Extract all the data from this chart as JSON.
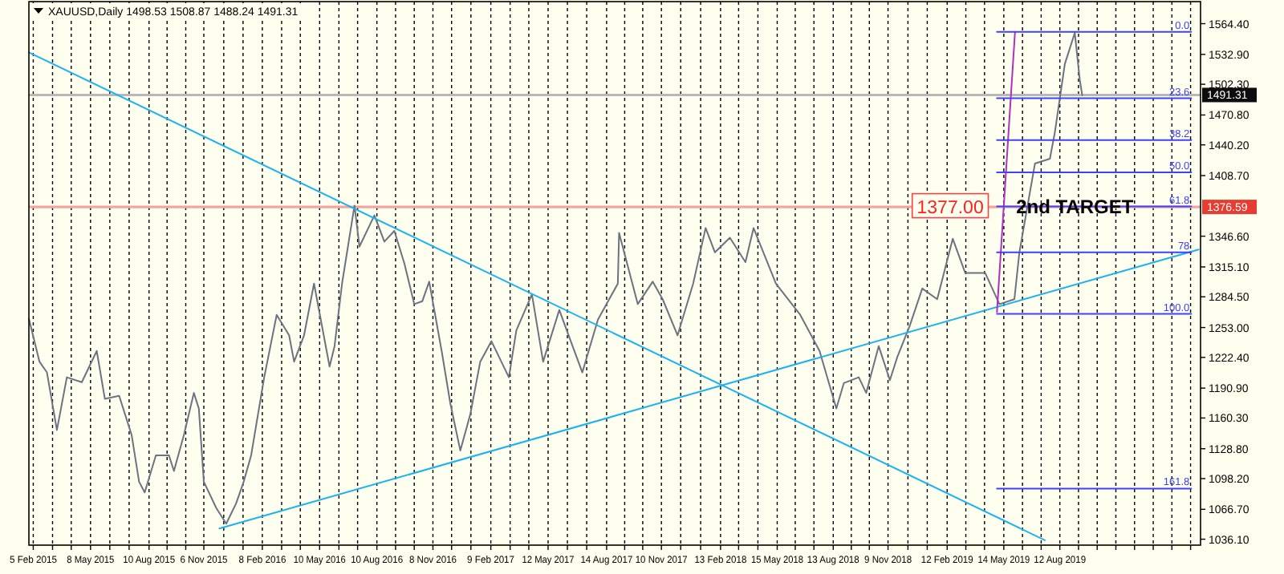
{
  "chart_data": {
    "type": "line",
    "title": "XAUUSD,Daily 1498.53 1508.87 1488.24 1491.31",
    "xlim": [
      "2015-01-29",
      "2020-03-25"
    ],
    "ylim": [
      1030,
      1587
    ],
    "xticks": [
      {
        "value": "2015-02-05",
        "label": "5 Feb 2015"
      },
      {
        "value": "2015-03-08",
        "label": null
      },
      {
        "value": "2015-04-07",
        "label": null
      },
      {
        "value": "2015-05-08",
        "label": "8 May 2015"
      },
      {
        "value": "2015-06-08",
        "label": null
      },
      {
        "value": "2015-07-09",
        "label": null
      },
      {
        "value": "2015-08-10",
        "label": "10 Aug 2015"
      },
      {
        "value": "2015-09-08",
        "label": null
      },
      {
        "value": "2015-10-08",
        "label": null
      },
      {
        "value": "2015-11-06",
        "label": "6 Nov 2015"
      },
      {
        "value": "2015-12-08",
        "label": null
      },
      {
        "value": "2016-01-08",
        "label": null
      },
      {
        "value": "2016-02-08",
        "label": "8 Feb 2016"
      },
      {
        "value": "2016-03-10",
        "label": null
      },
      {
        "value": "2016-04-09",
        "label": null
      },
      {
        "value": "2016-05-10",
        "label": "10 May 2016"
      },
      {
        "value": "2016-06-10",
        "label": null
      },
      {
        "value": "2016-07-10",
        "label": null
      },
      {
        "value": "2016-08-10",
        "label": "10 Aug 2016"
      },
      {
        "value": "2016-09-09",
        "label": null
      },
      {
        "value": "2016-10-09",
        "label": null
      },
      {
        "value": "2016-11-08",
        "label": "8 Nov 2016"
      },
      {
        "value": "2016-12-08",
        "label": null
      },
      {
        "value": "2017-01-08",
        "label": null
      },
      {
        "value": "2017-02-09",
        "label": "9 Feb 2017"
      },
      {
        "value": "2017-03-12",
        "label": null
      },
      {
        "value": "2017-04-11",
        "label": null
      },
      {
        "value": "2017-05-12",
        "label": "12 May 2017"
      },
      {
        "value": "2017-06-12",
        "label": null
      },
      {
        "value": "2017-07-13",
        "label": null
      },
      {
        "value": "2017-08-14",
        "label": "14 Aug 2017"
      },
      {
        "value": "2017-09-12",
        "label": null
      },
      {
        "value": "2017-10-11",
        "label": null
      },
      {
        "value": "2017-11-10",
        "label": "10 Nov 2017"
      },
      {
        "value": "2017-12-11",
        "label": null
      },
      {
        "value": "2018-01-12",
        "label": null
      },
      {
        "value": "2018-02-13",
        "label": "13 Feb 2018"
      },
      {
        "value": "2018-03-14",
        "label": null
      },
      {
        "value": "2018-04-14",
        "label": null
      },
      {
        "value": "2018-05-15",
        "label": "15 May 2018"
      },
      {
        "value": "2018-06-13",
        "label": null
      },
      {
        "value": "2018-07-13",
        "label": null
      },
      {
        "value": "2018-08-13",
        "label": "13 Aug 2018"
      },
      {
        "value": "2018-09-11",
        "label": null
      },
      {
        "value": "2018-10-10",
        "label": null
      },
      {
        "value": "2018-11-09",
        "label": "9 Nov 2018"
      },
      {
        "value": "2018-12-11",
        "label": null
      },
      {
        "value": "2019-01-11",
        "label": null
      },
      {
        "value": "2019-02-12",
        "label": "12 Feb 2019"
      },
      {
        "value": "2019-03-14",
        "label": null
      },
      {
        "value": "2019-04-13",
        "label": null
      },
      {
        "value": "2019-05-14",
        "label": "14 May 2019"
      },
      {
        "value": "2019-06-13",
        "label": null
      },
      {
        "value": "2019-07-13",
        "label": null
      },
      {
        "value": "2019-08-12",
        "label": "12 Aug 2019"
      },
      {
        "value": "2019-09-11",
        "label": null
      },
      {
        "value": "2019-10-11",
        "label": null
      },
      {
        "value": "2019-11-10",
        "label": null
      },
      {
        "value": "2019-12-10",
        "label": null
      },
      {
        "value": "2020-01-09",
        "label": null
      },
      {
        "value": "2020-02-08",
        "label": null
      },
      {
        "value": "2020-03-09",
        "label": null
      }
    ],
    "yticks": [
      {
        "value": 1564.4,
        "label": "1564.40"
      },
      {
        "value": 1532.9,
        "label": "1532.90"
      },
      {
        "value": 1502.3,
        "label": "1502.30"
      },
      {
        "value": 1470.8,
        "label": "1470.80"
      },
      {
        "value": 1440.2,
        "label": "1440.20"
      },
      {
        "value": 1408.7,
        "label": "1408.70"
      },
      {
        "value": 1346.6,
        "label": "1346.60"
      },
      {
        "value": 1315.1,
        "label": "1315.10"
      },
      {
        "value": 1284.5,
        "label": "1284.50"
      },
      {
        "value": 1253,
        "label": "1253.00"
      },
      {
        "value": 1222.4,
        "label": "1222.40"
      },
      {
        "value": 1190.9,
        "label": "1190.90"
      },
      {
        "value": 1160.3,
        "label": "1160.30"
      },
      {
        "value": 1128.8,
        "label": "1128.80"
      },
      {
        "value": 1098.2,
        "label": "1098.20"
      },
      {
        "value": 1066.7,
        "label": "1066.70"
      },
      {
        "value": 1036.1,
        "label": "1036.10"
      }
    ],
    "grid": "x",
    "marker": "none",
    "line_style": "solid",
    "ref_lines": [
      {
        "axis": "y",
        "value": 1376.59,
        "label": "1376.59",
        "color": "#f4a5a0"
      },
      {
        "axis": "y",
        "value": 1491.31,
        "label": "1491.31",
        "color": "#b8b8b8"
      }
    ],
    "annotations": [
      {
        "text": "1377.00",
        "x": "2019-02-17",
        "y": 1377
      },
      {
        "text": "2nd TARGET",
        "x": "2019-09-05",
        "y": 1377
      }
    ],
    "series": [
      {
        "color": "#6b7380",
        "x": [
          "2015-01-29",
          "2015-02-15",
          "2015-02-27",
          "2015-03-15",
          "2015-03-31",
          "2015-04-24",
          "2015-05-18",
          "2015-05-31",
          "2015-06-23",
          "2015-07-13",
          "2015-07-25",
          "2015-08-03",
          "2015-08-21",
          "2015-09-11",
          "2015-09-19",
          "2015-10-05",
          "2015-10-21",
          "2015-10-29",
          "2015-11-06",
          "2015-11-26",
          "2015-12-12",
          "2015-12-28",
          "2016-01-09",
          "2016-01-21",
          "2016-02-11",
          "2016-03-02",
          "2016-03-22",
          "2016-03-30",
          "2016-04-15",
          "2016-05-01",
          "2016-05-26",
          "2016-06-03",
          "2016-06-15",
          "2016-07-05",
          "2016-07-13",
          "2016-08-06",
          "2016-08-22",
          "2016-09-07",
          "2016-09-23",
          "2016-10-09",
          "2016-10-22",
          "2016-11-02",
          "2016-11-22",
          "2016-12-06",
          "2016-12-22",
          "2017-01-07",
          "2017-01-23",
          "2017-02-10",
          "2017-03-10",
          "2017-03-22",
          "2017-04-16",
          "2017-05-04",
          "2017-05-30",
          "2017-06-11",
          "2017-07-06",
          "2017-07-31",
          "2017-09-01",
          "2017-09-03",
          "2017-10-03",
          "2017-10-27",
          "2017-11-12",
          "2017-12-06",
          "2017-12-31",
          "2018-01-20",
          "2018-02-04",
          "2018-02-28",
          "2018-03-25",
          "2018-04-07",
          "2018-05-13",
          "2018-06-21",
          "2018-07-22",
          "2018-08-18",
          "2018-08-30",
          "2018-09-23",
          "2018-10-05",
          "2018-10-25",
          "2018-11-12",
          "2018-11-24",
          "2018-12-14",
          "2019-01-03",
          "2019-01-27",
          "2019-02-21",
          "2019-03-13",
          "2019-04-14",
          "2019-05-07",
          "2019-05-31",
          "2019-06-08",
          "2019-07-03",
          "2019-07-27",
          "2019-08-04",
          "2019-08-20",
          "2019-09-05",
          "2019-09-13",
          "2019-09-17"
        ],
        "values": [
          1262,
          1218,
          1207,
          1148,
          1202,
          1197,
          1229,
          1180,
          1183,
          1143,
          1095,
          1084,
          1122,
          1122,
          1106,
          1143,
          1186,
          1170,
          1095,
          1068,
          1052,
          1073,
          1095,
          1122,
          1202,
          1266,
          1245,
          1218,
          1245,
          1298,
          1213,
          1234,
          1298,
          1378,
          1336,
          1368,
          1341,
          1352,
          1319,
          1277,
          1280,
          1300,
          1229,
          1175,
          1127,
          1164,
          1218,
          1239,
          1202,
          1250,
          1287,
          1218,
          1271,
          1250,
          1207,
          1261,
          1298,
          1350,
          1277,
          1300,
          1282,
          1245,
          1298,
          1355,
          1330,
          1345,
          1320,
          1355,
          1298,
          1266,
          1229,
          1170,
          1196,
          1202,
          1186,
          1234,
          1199,
          1223,
          1255,
          1293,
          1282,
          1344,
          1309,
          1309,
          1277,
          1282,
          1330,
          1421,
          1426,
          1453,
          1523,
          1555,
          1507,
          1491
        ]
      },
      {
        "color": "#1ab2f0",
        "x": [
          "2015-01-29",
          "2019-07-19"
        ],
        "values": [
          1535,
          1035
        ]
      },
      {
        "color": "#1ab2f0",
        "x": [
          "2015-12-01",
          "2020-03-22"
        ],
        "values": [
          1047,
          1333
        ]
      },
      {
        "color": "#b030c0",
        "x": [
          "2019-05-03",
          "2019-06-01"
        ],
        "values": [
          1269,
          1556
        ]
      },
      {
        "name": "0.0",
        "color": "#4040ff",
        "x": [
          "2019-05-03",
          "2020-03-10"
        ],
        "values": [
          1556,
          1556
        ]
      },
      {
        "name": "23.6",
        "color": "#4040ff",
        "x": [
          "2019-05-03",
          "2020-03-10"
        ],
        "values": [
          1488,
          1488
        ]
      },
      {
        "name": "38.2",
        "color": "#4040ff",
        "x": [
          "2019-05-03",
          "2020-03-10"
        ],
        "values": [
          1445,
          1445
        ]
      },
      {
        "name": "50.0",
        "color": "#4040ff",
        "x": [
          "2019-05-03",
          "2020-03-10"
        ],
        "values": [
          1412,
          1412
        ]
      },
      {
        "name": "61.8",
        "color": "#4040ff",
        "x": [
          "2019-05-03",
          "2020-03-10"
        ],
        "values": [
          1377,
          1377
        ]
      },
      {
        "name": "78",
        "color": "#4040ff",
        "x": [
          "2019-05-03",
          "2020-03-10"
        ],
        "values": [
          1330,
          1330
        ]
      },
      {
        "name": "100.0",
        "color": "#4040ff",
        "x": [
          "2019-05-03",
          "2020-03-10"
        ],
        "values": [
          1267,
          1267
        ]
      },
      {
        "name": "161.8",
        "color": "#4040ff",
        "x": [
          "2019-05-03",
          "2020-03-10"
        ],
        "values": [
          1088,
          1088
        ]
      }
    ]
  }
}
